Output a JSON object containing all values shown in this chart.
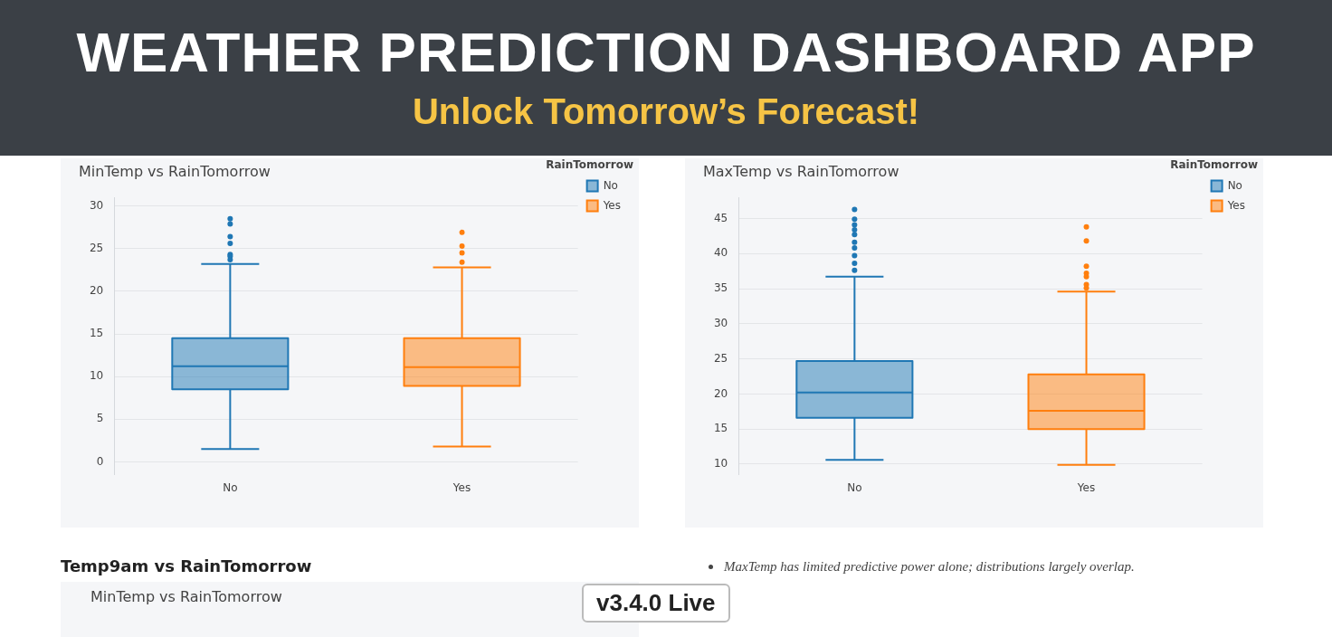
{
  "chart_data": [
    {
      "type": "other",
      "title": "WEATHER PREDICTION DASHBOARD APP",
      "subtitle": "Unlock Tomorrow’s Forecast!",
      "annotations": [
        "v3.4.0 Live"
      ]
    },
    {
      "type": "box",
      "title": "MinTemp vs RainTomorrow",
      "categories": [
        "No",
        "Yes"
      ],
      "legend_title": "RainTomorrow",
      "legend": "top right",
      "grid": "y",
      "ylim": [
        -1.5,
        31
      ],
      "yticks": [
        0,
        5,
        10,
        15,
        20,
        25,
        30
      ],
      "series": [
        {
          "name": "No",
          "color": "#1f77b4",
          "boxes": [
            {
              "low": 1.5,
              "q1": 8.5,
              "median": 11.2,
              "q3": 14.5,
              "high": 23.2,
              "outliers": [
                28.5,
                27.9,
                26.4,
                25.6,
                24.3,
                24.1,
                23.7
              ]
            },
            null
          ]
        },
        {
          "name": "Yes",
          "color": "#ff7f0e",
          "boxes": [
            null,
            {
              "low": 1.8,
              "q1": 8.9,
              "median": 11.1,
              "q3": 14.5,
              "high": 22.8,
              "outliers": [
                26.9,
                25.3,
                24.5,
                23.4
              ]
            }
          ]
        }
      ]
    },
    {
      "type": "box",
      "title": "MaxTemp vs RainTomorrow",
      "categories": [
        "No",
        "Yes"
      ],
      "legend_title": "RainTomorrow",
      "legend": "top right",
      "grid": "y",
      "ylim": [
        8.5,
        48
      ],
      "yticks": [
        10,
        15,
        20,
        25,
        30,
        35,
        40,
        45
      ],
      "annotations": [
        "MaxTemp has limited predictive power alone; distributions largely overlap."
      ],
      "series": [
        {
          "name": "No",
          "color": "#1f77b4",
          "boxes": [
            {
              "low": 10.6,
              "q1": 16.6,
              "median": 20.2,
              "q3": 24.7,
              "high": 36.7,
              "outliers": [
                46.3,
                44.9,
                44.1,
                43.4,
                42.7,
                41.6,
                40.8,
                39.7,
                38.6,
                37.6
              ]
            },
            null
          ]
        },
        {
          "name": "Yes",
          "color": "#ff7f0e",
          "boxes": [
            null,
            {
              "low": 9.9,
              "q1": 15.0,
              "median": 17.6,
              "q3": 22.8,
              "high": 34.6,
              "outliers": [
                43.8,
                41.8,
                38.2,
                37.2,
                36.7,
                35.6,
                35.1
              ]
            }
          ]
        }
      ]
    },
    {
      "type": "other",
      "title": "Temp9am vs RainTomorrow",
      "annotations": [
        "MinTemp vs RainTomorrow"
      ]
    }
  ]
}
